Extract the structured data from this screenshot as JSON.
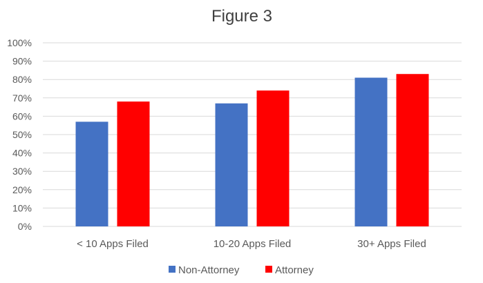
{
  "chart_data": {
    "type": "bar",
    "title": "Figure 3",
    "categories": [
      "< 10 Apps Filed",
      "10-20 Apps Filed",
      "30+ Apps Filed"
    ],
    "series": [
      {
        "name": "Non-Attorney",
        "values": [
          57,
          67,
          81
        ],
        "color": "#4472c4"
      },
      {
        "name": "Attorney",
        "values": [
          68,
          74,
          83
        ],
        "color": "#ff0000"
      }
    ],
    "y_ticks": [
      "0%",
      "10%",
      "20%",
      "30%",
      "40%",
      "50%",
      "60%",
      "70%",
      "80%",
      "90%",
      "100%"
    ],
    "ylim": [
      0,
      100
    ],
    "y_unit": "%",
    "grid": true,
    "legend_position": "bottom"
  }
}
